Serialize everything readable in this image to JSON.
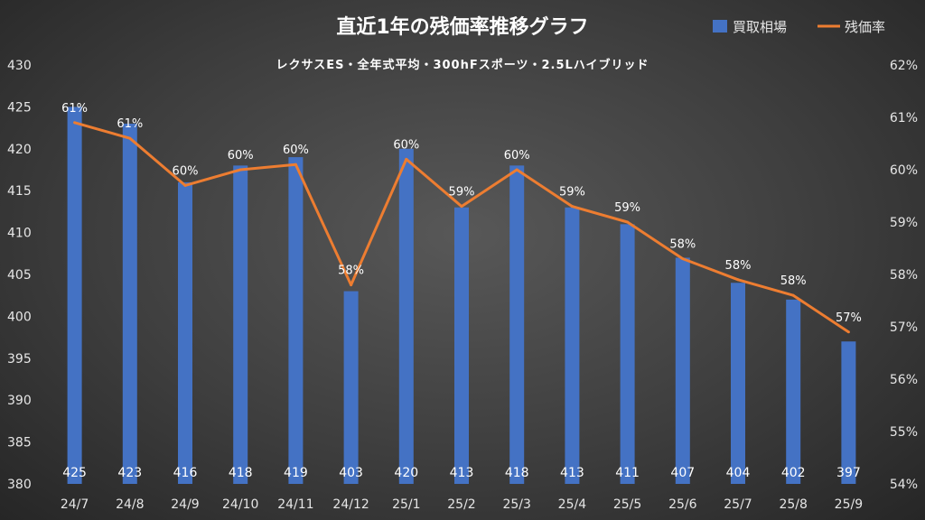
{
  "chart_data": {
    "type": "bar",
    "title": "直近1年の残価率推移グラフ",
    "subtitle": "レクサスES・全年式平均・300hFスポーツ・2.5Lハイブリッド",
    "categories": [
      "24/7",
      "24/8",
      "24/9",
      "24/10",
      "24/11",
      "24/12",
      "25/1",
      "25/2",
      "25/3",
      "25/4",
      "25/5",
      "25/6",
      "25/7",
      "25/8",
      "25/9"
    ],
    "series": [
      {
        "name": "買取相場",
        "type": "bar",
        "axis": "left",
        "color": "#4472C4",
        "values": [
          425,
          423,
          416,
          418,
          419,
          403,
          420,
          413,
          418,
          413,
          411,
          407,
          404,
          402,
          397
        ],
        "labels": [
          "425",
          "423",
          "416",
          "418",
          "419",
          "403",
          "420",
          "413",
          "418",
          "413",
          "411",
          "407",
          "404",
          "402",
          "397"
        ]
      },
      {
        "name": "残価率",
        "type": "line",
        "axis": "right",
        "color": "#ED7D31",
        "values": [
          60.9,
          60.6,
          59.7,
          60.0,
          60.1,
          57.8,
          60.2,
          59.3,
          60.0,
          59.3,
          59.0,
          58.3,
          57.9,
          57.6,
          56.9
        ],
        "labels": [
          "61%",
          "61%",
          "60%",
          "60%",
          "60%",
          "58%",
          "60%",
          "59%",
          "60%",
          "59%",
          "59%",
          "58%",
          "58%",
          "58%",
          "57%"
        ]
      }
    ],
    "y_left": {
      "range": [
        380,
        430
      ],
      "ticks": [
        "380",
        "385",
        "390",
        "395",
        "400",
        "405",
        "410",
        "415",
        "420",
        "425",
        "430"
      ]
    },
    "y_right": {
      "range": [
        54,
        62
      ],
      "ticks": [
        "54%",
        "55%",
        "56%",
        "57%",
        "58%",
        "59%",
        "60%",
        "61%",
        "62%"
      ]
    },
    "grid": false,
    "legend": {
      "position": "top-right"
    }
  }
}
